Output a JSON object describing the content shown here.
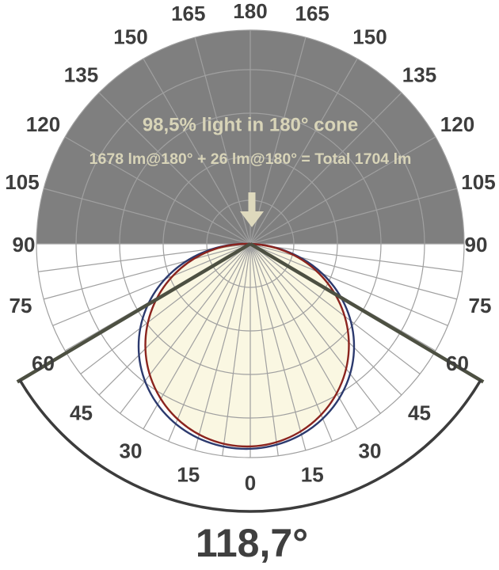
{
  "header": {
    "cone_summary": "98,5% light in 180° cone",
    "lumen_summary": "1678 lm@180° + 26 lm@180° = Total 1704 lm"
  },
  "beam_angle": {
    "label": "118,7°"
  },
  "scale": {
    "labels": [
      "0",
      "15",
      "30",
      "45",
      "60",
      "75",
      "90",
      "105",
      "120",
      "135",
      "150",
      "165",
      "180"
    ]
  },
  "colors": {
    "background": "#ffffff",
    "upper_hemisphere_fill": "#7f7f7f",
    "grid_line": "#a0a0a0",
    "curve_fill": "#faf7e2",
    "curve_red_stroke": "#8b241e",
    "curve_blue_stroke": "#2c3a6e",
    "beam_line": "#4d5042",
    "beam_arc": "#3c3c3c",
    "angle_label_text": "#3d3d3d",
    "overlay_text": "#d8d4b8",
    "arrow_fill": "#ded9bd"
  },
  "chart_data": {
    "type": "polar",
    "title": "Luminaire polar intensity distribution (photometric curve)",
    "angle_tick_labels_deg": [
      0,
      15,
      30,
      45,
      60,
      75,
      90,
      105,
      120,
      135,
      150,
      165,
      180
    ],
    "angle_grid_step_lower_half_deg": 7.5,
    "angle_grid_step_upper_half_deg": 15,
    "radial_rings_fraction_of_max": [
      0.2,
      0.41,
      0.61,
      0.81,
      1.0
    ],
    "series": [
      {
        "name": "distribution-curve-red",
        "color": "#8b241e",
        "gamma_deg": [
          0,
          15,
          30,
          45,
          60,
          75,
          90
        ],
        "relative_intensity": [
          0.94,
          0.91,
          0.82,
          0.67,
          0.47,
          0.24,
          0.0
        ]
      },
      {
        "name": "distribution-curve-blue",
        "color": "#2c3a6e",
        "gamma_deg": [
          0,
          15,
          30,
          45,
          60,
          75,
          90
        ],
        "relative_intensity": [
          0.96,
          0.93,
          0.86,
          0.73,
          0.53,
          0.29,
          0.0
        ]
      }
    ],
    "beam_angle_deg": 118.7,
    "light_in_180_cone_percent": 98.5,
    "lumens_down_at_180": 1678,
    "lumens_up_at_180": 26,
    "lumens_total": 1704,
    "legend": "none",
    "grid": true,
    "annotations": [
      "98,5% light in 180° cone",
      "1678 lm@180° + 26 lm@180° = Total 1704 lm",
      "118,7°"
    ]
  }
}
